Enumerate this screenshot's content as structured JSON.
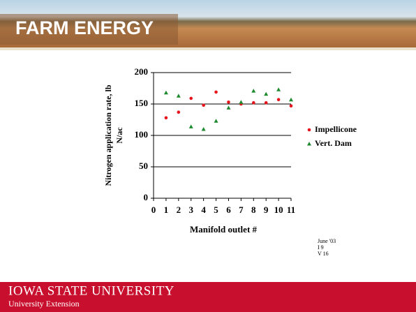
{
  "slide": {
    "title": "FARM ENERGY",
    "footer": [
      "IOWA STATE UNIVERSITY",
      "University Extension"
    ],
    "note": [
      "June '03",
      "I 9",
      "V 16"
    ]
  },
  "chart_data": {
    "type": "scatter",
    "y_label": [
      "Nitrogen application rate, lb",
      "N/ac"
    ],
    "x_label": "Manifold outlet #",
    "x": [
      1,
      2,
      3,
      4,
      5,
      6,
      7,
      8,
      9,
      10,
      11
    ],
    "series": [
      {
        "name": "Impellicone",
        "color": "#e8141b",
        "marker": "circle",
        "values": [
          128,
          137,
          159,
          148,
          169,
          153,
          150,
          152,
          152,
          157,
          147
        ]
      },
      {
        "name": "Vert. Dam",
        "color": "#1e8a2e",
        "marker": "triangle",
        "values": [
          168,
          163,
          114,
          110,
          123,
          144,
          153,
          171,
          166,
          173,
          157
        ]
      }
    ],
    "xlim": [
      0,
      11
    ],
    "xticks": [
      0,
      1,
      2,
      3,
      4,
      5,
      6,
      7,
      8,
      9,
      10,
      11
    ],
    "ylim": [
      0,
      200
    ],
    "yticks": [
      0,
      50,
      100,
      150,
      200
    ],
    "grid": true,
    "legend": "right"
  }
}
